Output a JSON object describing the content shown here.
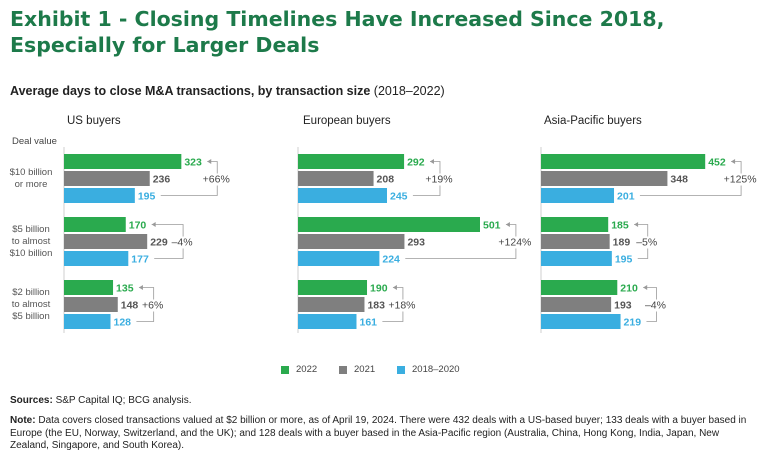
{
  "title": "Exhibit 1 - Closing Timelines Have Increased Since 2018, Especially for Larger Deals",
  "subtitle": {
    "bold": "Average days to close M&A transactions, by transaction size",
    "years": "(2018–2022)"
  },
  "deal_value_label": "Deal value",
  "row_labels": [
    [
      "$10 billion",
      "or more"
    ],
    [
      "$5 billion",
      "to almost",
      "$10 billion"
    ],
    [
      "$2 billion",
      "to almost",
      "$5 billion"
    ]
  ],
  "colors": {
    "2022": "#2aaa4e",
    "2021": "#7f7f7f",
    "2018–2020": "#3aaee0",
    "title": "#1d7a4a",
    "value_2022": "#2aaa4e",
    "value_2021": "#555555",
    "value_2018": "#3aaee0"
  },
  "chart_data": {
    "type": "bar",
    "orientation": "horizontal",
    "title": "Average days to close M&A transactions, by transaction size (2018–2022)",
    "categories": [
      "$10 billion or more",
      "$5 billion to almost $10 billion",
      "$2 billion to almost $5 billion"
    ],
    "series_names": [
      "2022",
      "2021",
      "2018–2020"
    ],
    "xlim": [
      0,
      501
    ],
    "panels": [
      {
        "name": "US buyers",
        "groups": [
          {
            "values": [
              323,
              236,
              195
            ],
            "change": "+66%"
          },
          {
            "values": [
              170,
              229,
              177
            ],
            "change": "–4%"
          },
          {
            "values": [
              135,
              148,
              128
            ],
            "change": "+6%"
          }
        ]
      },
      {
        "name": "European buyers",
        "groups": [
          {
            "values": [
              292,
              208,
              245
            ],
            "change": "+19%"
          },
          {
            "values": [
              501,
              293,
              224
            ],
            "change": "+124%"
          },
          {
            "values": [
              190,
              183,
              161
            ],
            "change": "+18%"
          }
        ]
      },
      {
        "name": "Asia-Pacific buyers",
        "groups": [
          {
            "values": [
              452,
              348,
              201
            ],
            "change": "+125%"
          },
          {
            "values": [
              185,
              189,
              195
            ],
            "change": "–5%"
          },
          {
            "values": [
              210,
              193,
              219
            ],
            "change": "–4%"
          }
        ]
      }
    ]
  },
  "sources": {
    "label": "Sources:",
    "text": "S&P Capital IQ; BCG analysis."
  },
  "note": {
    "label": "Note:",
    "text": "Data covers closed transactions valued at $2 billion or more, as of April 19, 2024. There were 432 deals with a US-based buyer; 133 deals with a buyer based in Europe (the EU, Norway, Switzerland, and the UK); and 128 deals with a buyer based in the Asia-Pacific region (Australia, China, Hong Kong, India, Japan, New Zealand, Singapore, and South Korea)."
  }
}
